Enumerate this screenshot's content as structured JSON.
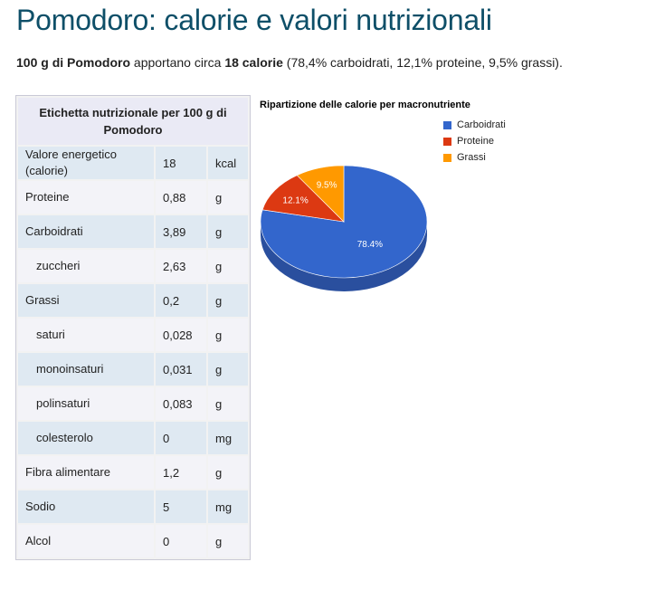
{
  "page": {
    "title": "Pomodoro: calorie e valori nutrizionali",
    "summary": {
      "quantity": "100 g di Pomodoro",
      "text1": " apportano circa ",
      "calories": "18 calorie",
      "text2": " (78,4% carboidrati, 12,1% proteine, 9,5% grassi)."
    }
  },
  "table": {
    "header": "Etichetta nutrizionale per 100 g di Pomodoro",
    "rows": [
      {
        "label": "Valore energetico (calorie)",
        "value": "18",
        "unit": "kcal",
        "sub": false
      },
      {
        "label": "Proteine",
        "value": "0,88",
        "unit": "g",
        "sub": false
      },
      {
        "label": "Carboidrati",
        "value": "3,89",
        "unit": "g",
        "sub": false
      },
      {
        "label": "zuccheri",
        "value": "2,63",
        "unit": "g",
        "sub": true
      },
      {
        "label": "Grassi",
        "value": "0,2",
        "unit": "g",
        "sub": false
      },
      {
        "label": "saturi",
        "value": "0,028",
        "unit": "g",
        "sub": true
      },
      {
        "label": "monoinsaturi",
        "value": "0,031",
        "unit": "g",
        "sub": true
      },
      {
        "label": "polinsaturi",
        "value": "0,083",
        "unit": "g",
        "sub": true
      },
      {
        "label": "colesterolo",
        "value": "0",
        "unit": "mg",
        "sub": true
      },
      {
        "label": "Fibra alimentare",
        "value": "1,2",
        "unit": "g",
        "sub": false
      },
      {
        "label": "Sodio",
        "value": "5",
        "unit": "mg",
        "sub": false
      },
      {
        "label": "Alcol",
        "value": "0",
        "unit": "g",
        "sub": false
      }
    ]
  },
  "chart_data": {
    "type": "pie",
    "style": "3d",
    "title": "Ripartizione delle calorie per macronutriente",
    "legend_position": "right",
    "slices": [
      {
        "label": "Carboidrati",
        "value": 78.4,
        "display": "78.4%",
        "color": "#3366cc",
        "side_color": "#2a4f9e"
      },
      {
        "label": "Proteine",
        "value": 12.1,
        "display": "12.1%",
        "color": "#dc3912",
        "side_color": "#a92c0e"
      },
      {
        "label": "Grassi",
        "value": 9.5,
        "display": "9.5%",
        "color": "#ff9900",
        "side_color": "#c27400"
      }
    ]
  }
}
